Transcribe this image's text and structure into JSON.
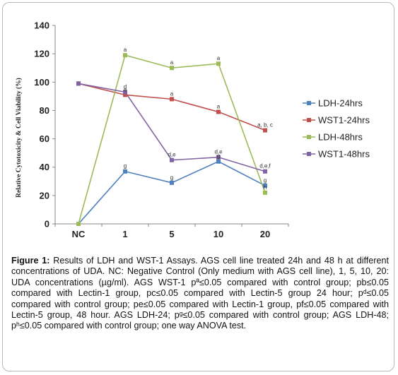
{
  "chart_data": {
    "type": "line",
    "categories": [
      "NC",
      "1",
      "5",
      "10",
      "20"
    ],
    "ylabel": "Relative Cytotoxicity & Cell Viability (%)",
    "ylim": [
      0,
      140
    ],
    "yticks": [
      "0",
      "20",
      "40",
      "60",
      "80",
      "100",
      "120",
      "140"
    ],
    "grid": false,
    "legend_position": "right",
    "series": [
      {
        "name": "LDH-24hrs",
        "color": "#4f81bd",
        "marker": "square",
        "values": [
          0,
          37,
          29,
          44,
          27
        ]
      },
      {
        "name": "WST1-24hrs",
        "color": "#c0504d",
        "marker": "square",
        "values": [
          99,
          91,
          88,
          79,
          66
        ]
      },
      {
        "name": "LDH-48hrs",
        "color": "#9bbb59",
        "marker": "square",
        "values": [
          0,
          119,
          110,
          113,
          22
        ]
      },
      {
        "name": "WST1-48hrs",
        "color": "#8064a2",
        "marker": "square",
        "values": [
          99,
          93,
          45,
          47,
          37
        ]
      }
    ],
    "annotations": [
      {
        "text": "a",
        "x": "1",
        "y": 119
      },
      {
        "text": "a",
        "x": "5",
        "y": 110
      },
      {
        "text": "a",
        "x": "10",
        "y": 113
      },
      {
        "text": "d",
        "x": "1",
        "y": 93
      },
      {
        "text": "a",
        "x": "1",
        "y": 91
      },
      {
        "text": "a",
        "x": "5",
        "y": 88
      },
      {
        "text": "a",
        "x": "10",
        "y": 79
      },
      {
        "text": "a, b, c",
        "x": "20",
        "y": 66
      },
      {
        "text": "d,e",
        "x": "5",
        "y": 45
      },
      {
        "text": "d,e",
        "x": "10",
        "y": 47
      },
      {
        "text": "d,e,f",
        "x": "20",
        "y": 37
      },
      {
        "text": "g",
        "x": "1",
        "y": 37
      },
      {
        "text": "g",
        "x": "5",
        "y": 29
      },
      {
        "text": "g",
        "x": "10",
        "y": 44
      },
      {
        "text": "g",
        "x": "20",
        "y": 27
      },
      {
        "text": "h",
        "x": "20",
        "y": 22
      }
    ]
  },
  "caption": {
    "label": "Figure 1:",
    "text": " Results of LDH and WST-1 Assays. AGS cell line treated 24h and 48 h at different concentrations of UDA. NC: Negative Control (Only medium with AGS cell line), 1, 5, 10, 20: UDA concentrations (µg/ml). AGS WST-1  pª≤0.05 compared with control group; pb≤0.05 compared with  Lectin-1 group, pc≤0.05 compared with  Lectin-5 group 24 hour; pᵈ≤0.05 compared with control group; pe≤0.05 compared with  Lectin-1 group, pf≤0.05 compared with  Lectin-5 group,  48 hour. AGS LDH-24;  pᵍ≤0.05 compared with control group; AGS LDH-48; pʰ≤0.05 compared with control group; one way ANOVA test."
  }
}
